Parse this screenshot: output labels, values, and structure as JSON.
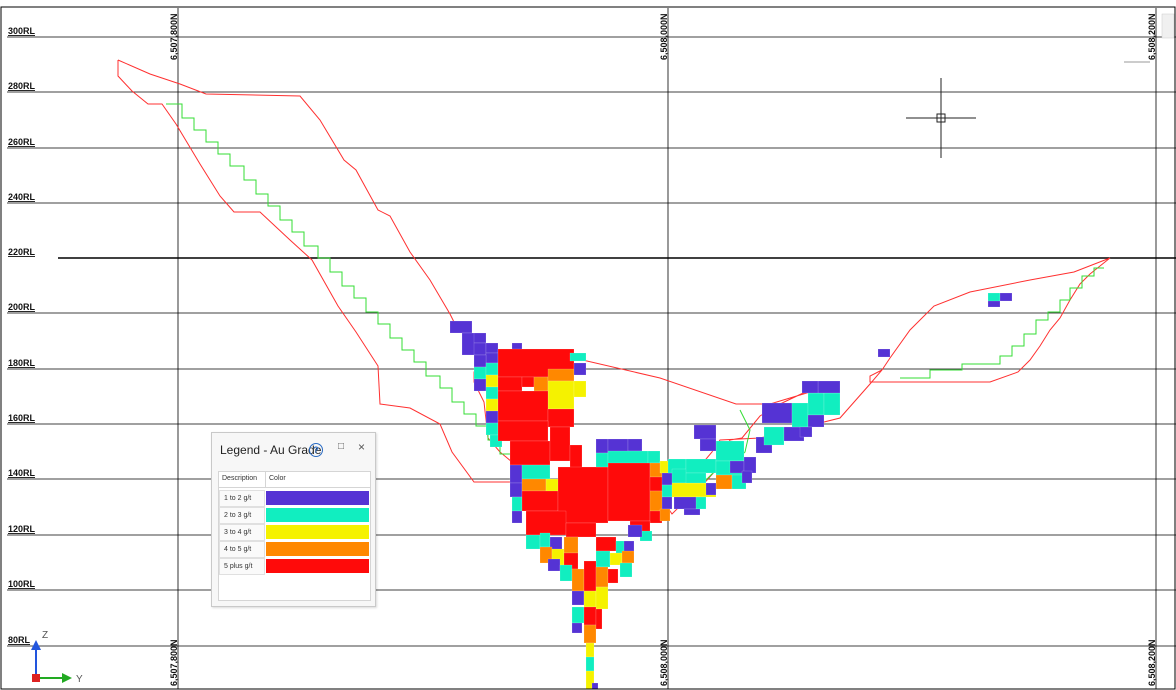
{
  "section": {
    "rl_labels": [
      "300RL",
      "280RL",
      "260RL",
      "240RL",
      "220RL",
      "200RL",
      "180RL",
      "160RL",
      "140RL",
      "120RL",
      "100RL",
      "80RL"
    ],
    "northing_labels": [
      "6,507,800N",
      "6,508,000N",
      "6,508,200N"
    ]
  },
  "legend": {
    "title": "Legend - Au Grade",
    "help_icon": "?",
    "maximize_icon": "□",
    "close_icon": "×",
    "header_description": "Description",
    "header_color": "Color",
    "rows": [
      {
        "label": "1 to 2 g/t",
        "color": "#5533d4"
      },
      {
        "label": "2 to 3 g/t",
        "color": "#11eec0"
      },
      {
        "label": "3 to 4 g/t",
        "color": "#f5f200"
      },
      {
        "label": "4 to 5 g/t",
        "color": "#ff8800"
      },
      {
        "label": "5 plus g/t",
        "color": "#ff0a0a"
      }
    ]
  },
  "axis_triad": {
    "z": "Z",
    "y": "Y"
  },
  "colors": {
    "outline_red": "#ff3030",
    "outline_green": "#33dd33",
    "grid": "#000000"
  }
}
